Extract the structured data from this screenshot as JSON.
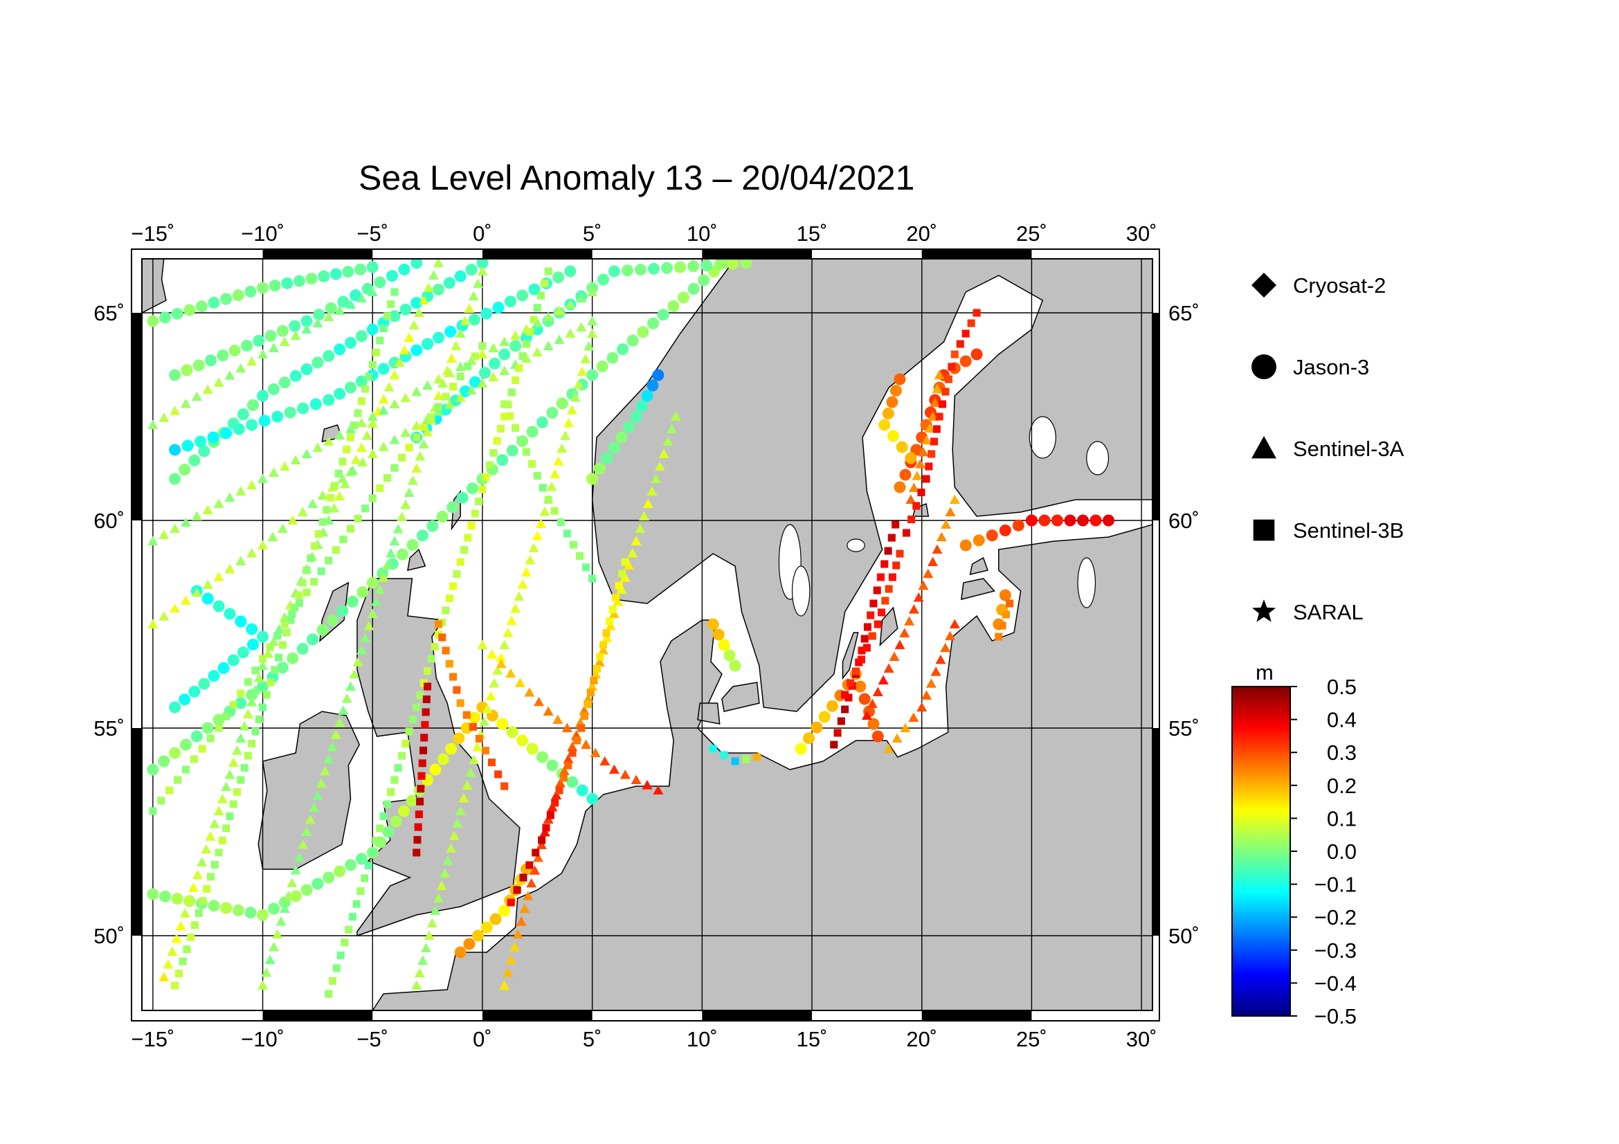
{
  "title": "Sea Level Anomaly 13 – 20/04/2021",
  "map": {
    "lon_ticks": [
      -15,
      -10,
      -5,
      0,
      5,
      10,
      15,
      20,
      25,
      30
    ],
    "lat_ticks": [
      50,
      55,
      60,
      65
    ],
    "lon_tick_labels": [
      "−15",
      "−10",
      "−5",
      "0",
      "5",
      "10",
      "15",
      "20",
      "25",
      "30"
    ],
    "lat_tick_labels": [
      "50",
      "55",
      "60",
      "65"
    ],
    "degree_symbol": "˚",
    "lon_range": [
      -15.5,
      30.5
    ],
    "lat_range": [
      48.2,
      66.3
    ],
    "land_color": "#c0c0c0",
    "sea_color": "#ffffff"
  },
  "legend": [
    {
      "label": "Cryosat-2",
      "symbol": "diamond"
    },
    {
      "label": "Jason-3",
      "symbol": "circle"
    },
    {
      "label": "Sentinel-3A",
      "symbol": "triangle"
    },
    {
      "label": "Sentinel-3B",
      "symbol": "square"
    },
    {
      "label": "SARAL",
      "symbol": "star"
    }
  ],
  "colorbar": {
    "unit": "m",
    "min": -0.5,
    "max": 0.5,
    "labels": [
      "0.5",
      "0.4",
      "0.3",
      "0.2",
      "0.1",
      "0.0",
      "−0.1",
      "−0.2",
      "−0.3",
      "−0.4",
      "−0.5"
    ],
    "colors": [
      "#7f0000",
      "#ff0000",
      "#ff7f00",
      "#ffff00",
      "#7fff7f",
      "#00ffff",
      "#007fff",
      "#0000ff",
      "#00007f"
    ]
  },
  "tracks": [
    {
      "sat": "circle",
      "pts": [
        [
          -14,
          61,
          -0.02
        ],
        [
          -10,
          63,
          -0.04
        ],
        [
          -5,
          64.6,
          -0.08
        ],
        [
          0,
          66.2,
          -0.06
        ]
      ]
    },
    {
      "sat": "circle",
      "pts": [
        [
          -14,
          63.5,
          0.01
        ],
        [
          -8,
          64.8,
          -0.03
        ],
        [
          -3,
          66.2,
          -0.07
        ]
      ]
    },
    {
      "sat": "circle",
      "pts": [
        [
          -14,
          61.7,
          -0.13
        ],
        [
          -7,
          62.9,
          -0.05
        ],
        [
          -2,
          64.4,
          -0.1
        ],
        [
          4,
          66,
          -0.05
        ]
      ]
    },
    {
      "sat": "circle",
      "pts": [
        [
          -15,
          54,
          0.02
        ],
        [
          -10,
          56,
          -0.03
        ],
        [
          -5,
          58.5,
          0.0
        ],
        [
          0,
          61,
          -0.02
        ],
        [
          5,
          63.5,
          -0.01
        ],
        [
          11,
          66.2,
          0.02
        ]
      ]
    },
    {
      "sat": "circle",
      "pts": [
        [
          -15,
          51,
          0.03
        ],
        [
          -10,
          50.5,
          0.02
        ],
        [
          -5,
          52,
          0.0
        ],
        [
          0,
          55.5,
          0.18
        ],
        [
          5,
          53.3,
          -0.08
        ]
      ]
    },
    {
      "sat": "circle",
      "pts": [
        [
          -14,
          55.5,
          -0.08
        ],
        [
          -10,
          57.2,
          -0.1
        ],
        [
          -13,
          58.3,
          -0.1
        ]
      ]
    },
    {
      "sat": "circle",
      "pts": [
        [
          -15,
          64.8,
          0.0
        ],
        [
          -10,
          65.6,
          -0.02
        ],
        [
          -5,
          66.1,
          -0.05
        ]
      ]
    },
    {
      "sat": "circle",
      "pts": [
        [
          -3,
          62,
          -0.12
        ],
        [
          1,
          64,
          -0.07
        ],
        [
          6,
          66,
          -0.03
        ],
        [
          12,
          66.2,
          0.03
        ]
      ]
    },
    {
      "sat": "circle",
      "pts": [
        [
          5,
          61,
          0.02
        ],
        [
          7,
          62.5,
          -0.04
        ],
        [
          8,
          63.5,
          -0.25
        ]
      ]
    },
    {
      "sat": "circle",
      "pts": [
        [
          -1,
          49.6,
          0.22
        ],
        [
          1,
          50.6,
          0.15
        ],
        [
          2,
          51.6,
          0.2
        ]
      ]
    },
    {
      "sat": "circle",
      "pts": [
        [
          10.5,
          57.5,
          0.2
        ],
        [
          11.5,
          56.5,
          0.05
        ]
      ]
    },
    {
      "sat": "circle",
      "pts": [
        [
          14.5,
          54.5,
          0.15
        ],
        [
          17,
          56.3,
          0.25
        ],
        [
          18,
          54.8,
          0.3
        ]
      ]
    },
    {
      "sat": "circle",
      "pts": [
        [
          19,
          60.8,
          0.28
        ],
        [
          20,
          62,
          0.3
        ],
        [
          21,
          63.5,
          0.3
        ],
        [
          22.5,
          64,
          0.32
        ]
      ]
    },
    {
      "sat": "circle",
      "pts": [
        [
          19,
          63.4,
          0.3
        ],
        [
          18.3,
          62.3,
          0.15
        ],
        [
          19.5,
          61.5,
          0.2
        ]
      ]
    },
    {
      "sat": "circle",
      "pts": [
        [
          22,
          59.4,
          0.25
        ],
        [
          25,
          60,
          0.35
        ],
        [
          28.5,
          60,
          0.4
        ]
      ]
    },
    {
      "sat": "circle",
      "pts": [
        [
          23.5,
          57.5,
          0.22
        ],
        [
          23.8,
          58.2,
          0.25
        ]
      ]
    },
    {
      "sat": "triangle",
      "pts": [
        [
          -14.5,
          49,
          0.12
        ],
        [
          -12,
          53,
          0.05
        ],
        [
          -10,
          56.5,
          0.02
        ],
        [
          -7,
          60,
          0.04
        ],
        [
          -4,
          63.5,
          0.1
        ],
        [
          -2,
          66.2,
          0.05
        ]
      ]
    },
    {
      "sat": "triangle",
      "pts": [
        [
          -10,
          48.8,
          0.02
        ],
        [
          -8,
          52.5,
          0.02
        ],
        [
          -6,
          56,
          0.03
        ],
        [
          -4,
          59.5,
          0.02
        ],
        [
          -2,
          63,
          0.08
        ],
        [
          0,
          66,
          0.05
        ]
      ]
    },
    {
      "sat": "triangle",
      "pts": [
        [
          -3,
          48.8,
          0.03
        ],
        [
          -1,
          53,
          0.05
        ],
        [
          1,
          57,
          0.1
        ],
        [
          3,
          60.5,
          0.1
        ],
        [
          5,
          64.5,
          0.05
        ]
      ]
    },
    {
      "sat": "triangle",
      "pts": [
        [
          1,
          48.8,
          0.15
        ],
        [
          3,
          52.8,
          0.35
        ],
        [
          5,
          56,
          0.2
        ],
        [
          7,
          59.5,
          0.1
        ],
        [
          8.8,
          62.5,
          0.05
        ]
      ]
    },
    {
      "sat": "triangle",
      "pts": [
        [
          -15,
          59.5,
          0.03
        ],
        [
          -10,
          61,
          0.04
        ],
        [
          -5,
          62.5,
          0.02
        ],
        [
          0,
          64,
          0.05
        ],
        [
          5,
          65.5,
          0.03
        ]
      ]
    },
    {
      "sat": "triangle",
      "pts": [
        [
          -15,
          62.3,
          0.05
        ],
        [
          -10,
          64,
          0.03
        ],
        [
          -5,
          65.5,
          -0.02
        ]
      ]
    },
    {
      "sat": "triangle",
      "pts": [
        [
          0,
          57,
          0.12
        ],
        [
          3,
          55.4,
          0.25
        ],
        [
          6,
          54,
          0.3
        ],
        [
          8,
          53.5,
          0.35
        ]
      ]
    },
    {
      "sat": "triangle",
      "pts": [
        [
          -15,
          57.5,
          0.1
        ],
        [
          -10,
          59.4,
          0.05
        ],
        [
          -5,
          61.6,
          0.03
        ],
        [
          0,
          63.3,
          0.04
        ],
        [
          5,
          64.8,
          0.02
        ]
      ]
    },
    {
      "sat": "triangle",
      "pts": [
        [
          17.5,
          55.3,
          0.35
        ],
        [
          19,
          57,
          0.3
        ],
        [
          20.5,
          59,
          0.3
        ],
        [
          21.5,
          60.5,
          0.2
        ]
      ]
    },
    {
      "sat": "triangle",
      "pts": [
        [
          21.5,
          57.5,
          0.3
        ],
        [
          20,
          55.5,
          0.28
        ],
        [
          18.5,
          54.5,
          0.2
        ]
      ]
    },
    {
      "sat": "triangle",
      "pts": [
        [
          19.5,
          60.5,
          0.25
        ],
        [
          20.5,
          62.5,
          0.22
        ],
        [
          20.8,
          63.5,
          0.22
        ]
      ]
    },
    {
      "sat": "square",
      "pts": [
        [
          -14,
          48.8,
          0.05
        ],
        [
          -12,
          52,
          0.04
        ],
        [
          -10,
          55.5,
          0.02
        ],
        [
          -8,
          58.8,
          0.03
        ],
        [
          -6,
          62,
          0.05
        ],
        [
          -4,
          65.5,
          0.0
        ]
      ]
    },
    {
      "sat": "square",
      "pts": [
        [
          -7,
          48.6,
          0.02
        ],
        [
          -5,
          52,
          0.0
        ],
        [
          -3,
          55.5,
          0.05
        ],
        [
          -1,
          59,
          0.08
        ],
        [
          1,
          62.5,
          0.06
        ],
        [
          3,
          66,
          0.03
        ]
      ]
    },
    {
      "sat": "square",
      "pts": [
        [
          -2,
          57.5,
          0.25
        ],
        [
          -1,
          55.6,
          0.25
        ],
        [
          1,
          53.6,
          0.3
        ]
      ]
    },
    {
      "sat": "square",
      "pts": [
        [
          1.3,
          50.8,
          0.4
        ],
        [
          2.7,
          52.3,
          0.45
        ],
        [
          3.5,
          53.5,
          0.3
        ],
        [
          4.5,
          55,
          0.25
        ],
        [
          5.5,
          57,
          0.15
        ],
        [
          6.5,
          59,
          0.1
        ]
      ]
    },
    {
      "sat": "square",
      "pts": [
        [
          -15,
          53,
          0.03
        ],
        [
          -12,
          55,
          0.05
        ],
        [
          -9,
          57.5,
          0.02
        ],
        [
          -6,
          59.8,
          0.02
        ],
        [
          -3,
          62,
          0.06
        ],
        [
          0,
          64.2,
          0.03
        ]
      ]
    },
    {
      "sat": "square",
      "pts": [
        [
          5,
          58.6,
          0.0
        ],
        [
          3,
          60.5,
          0.02
        ],
        [
          1,
          62.8,
          0.05
        ]
      ]
    },
    {
      "sat": "square",
      "pts": [
        [
          16,
          54.6,
          0.45
        ],
        [
          17,
          56.3,
          0.4
        ],
        [
          17.8,
          58,
          0.38
        ],
        [
          18.8,
          59.9,
          0.42
        ]
      ]
    },
    {
      "sat": "square",
      "pts": [
        [
          19.3,
          59.7,
          0.38
        ],
        [
          20.2,
          61,
          0.36
        ],
        [
          20.8,
          62.5,
          0.34
        ],
        [
          21.5,
          64,
          0.33
        ],
        [
          22.5,
          65,
          0.35
        ]
      ]
    },
    {
      "sat": "square",
      "pts": [
        [
          16.5,
          55.8,
          0.35
        ],
        [
          18,
          57.5,
          0.34
        ],
        [
          19,
          59.2,
          0.33
        ]
      ]
    },
    {
      "sat": "square",
      "pts": [
        [
          23.5,
          57.2,
          0.22
        ],
        [
          24,
          58,
          0.28
        ]
      ]
    },
    {
      "sat": "square",
      "pts": [
        [
          -3,
          52,
          0.42
        ],
        [
          -2.5,
          56,
          0.42
        ]
      ]
    },
    {
      "sat": "square",
      "pts": [
        [
          10.5,
          54.5,
          -0.1
        ],
        [
          11.5,
          54.2,
          -0.15
        ],
        [
          12.5,
          54.3,
          0.2
        ]
      ]
    }
  ]
}
